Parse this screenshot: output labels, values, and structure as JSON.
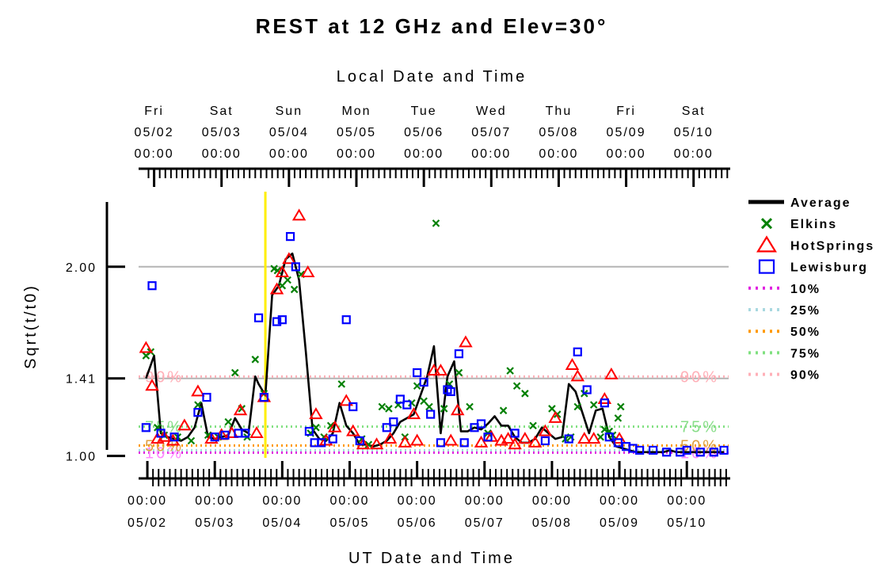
{
  "chart_data": {
    "type": "line",
    "title": "REST at 12 GHz and Elev=30°",
    "top_axis_title": "Local Date and Time",
    "xlabel": "UT Date and Time",
    "ylabel": "Sqrt(t/t0)",
    "x_unit": "UT days since 05/02 00:00",
    "xlim": [
      -0.13,
      8.62
    ],
    "ylim": [
      0.99,
      2.33
    ],
    "y_ticks": [
      {
        "value": 1.0,
        "label": "1.00"
      },
      {
        "value": 1.41,
        "label": "1.41"
      },
      {
        "value": 2.0,
        "label": "2.00"
      }
    ],
    "bottom_ticks": [
      {
        "x": 0,
        "time": "00:00",
        "date": "05/02"
      },
      {
        "x": 1,
        "time": "00:00",
        "date": "05/03"
      },
      {
        "x": 2,
        "time": "00:00",
        "date": "05/04"
      },
      {
        "x": 3,
        "time": "00:00",
        "date": "05/05"
      },
      {
        "x": 4,
        "time": "00:00",
        "date": "05/06"
      },
      {
        "x": 5,
        "time": "00:00",
        "date": "05/07"
      },
      {
        "x": 6,
        "time": "00:00",
        "date": "05/08"
      },
      {
        "x": 7,
        "time": "00:00",
        "date": "05/09"
      },
      {
        "x": 8,
        "time": "00:00",
        "date": "05/10"
      }
    ],
    "top_ticks": [
      {
        "x": 0.1,
        "day": "Fri",
        "date": "05/02",
        "time": "00:00"
      },
      {
        "x": 1.1,
        "day": "Sat",
        "date": "05/03",
        "time": "00:00"
      },
      {
        "x": 2.1,
        "day": "Sun",
        "date": "05/04",
        "time": "00:00"
      },
      {
        "x": 3.1,
        "day": "Mon",
        "date": "05/05",
        "time": "00:00"
      },
      {
        "x": 4.1,
        "day": "Tue",
        "date": "05/06",
        "time": "00:00"
      },
      {
        "x": 5.1,
        "day": "Wed",
        "date": "05/07",
        "time": "00:00"
      },
      {
        "x": 6.1,
        "day": "Thu",
        "date": "05/08",
        "time": "00:00"
      },
      {
        "x": 7.1,
        "day": "Fri",
        "date": "05/09",
        "time": "00:00"
      },
      {
        "x": 8.1,
        "day": "Sat",
        "date": "05/10",
        "time": "00:00"
      }
    ],
    "grid_lines": [
      1.41,
      2.0
    ],
    "current_time_marker": {
      "x": 1.75,
      "color": "#ffee00"
    },
    "percentiles": [
      {
        "name": "10%",
        "value": 1.017,
        "color": "#e020e0",
        "text_color": "#ff88ff",
        "labelled": true
      },
      {
        "name": "25%",
        "value": 1.03,
        "color": "#a8d8e0",
        "text_color": "#a8d8e0",
        "labelled": false
      },
      {
        "name": "50%",
        "value": 1.055,
        "color": "#ff9900",
        "text_color": "#e0a040",
        "labelled": true
      },
      {
        "name": "75%",
        "value": 1.155,
        "color": "#80e080",
        "text_color": "#88dd88",
        "labelled": true
      },
      {
        "name": "90%",
        "value": 1.42,
        "color": "#ffb0b8",
        "text_color": "#ffb0b8",
        "labelled": true
      }
    ],
    "series": [
      {
        "name": "Average",
        "kind": "line",
        "color": "#000000",
        "x": [
          -0.02,
          0.1,
          0.2,
          0.3,
          0.4,
          0.5,
          0.6,
          0.7,
          0.8,
          0.9,
          1.0,
          1.1,
          1.2,
          1.3,
          1.4,
          1.5,
          1.6,
          1.65,
          1.75,
          1.85,
          1.95,
          2.05,
          2.15,
          2.25,
          2.35,
          2.45,
          2.55,
          2.65,
          2.75,
          2.85,
          2.95,
          3.05,
          3.15,
          3.25,
          3.35,
          3.45,
          3.55,
          3.65,
          3.75,
          3.85,
          3.95,
          4.05,
          4.15,
          4.25,
          4.35,
          4.45,
          4.55,
          4.65,
          4.75,
          4.85,
          4.95,
          5.05,
          5.15,
          5.25,
          5.35,
          5.45,
          5.55,
          5.65,
          5.75,
          5.85,
          5.95,
          6.05,
          6.15,
          6.25,
          6.35,
          6.45,
          6.55,
          6.65,
          6.75,
          6.85,
          6.95,
          7.05,
          7.15,
          7.25,
          7.35,
          7.45,
          7.55,
          7.65,
          7.75,
          7.85,
          7.95,
          8.05,
          8.15,
          8.25,
          8.35,
          8.45,
          8.55
        ],
        "y": [
          1.41,
          1.53,
          1.12,
          1.1,
          1.09,
          1.08,
          1.1,
          1.15,
          1.28,
          1.1,
          1.09,
          1.1,
          1.11,
          1.2,
          1.14,
          1.12,
          1.42,
          1.38,
          1.32,
          1.85,
          1.9,
          2.04,
          2.07,
          1.93,
          1.55,
          1.14,
          1.09,
          1.08,
          1.12,
          1.28,
          1.16,
          1.12,
          1.06,
          1.06,
          1.05,
          1.06,
          1.08,
          1.12,
          1.18,
          1.2,
          1.22,
          1.32,
          1.42,
          1.58,
          1.12,
          1.42,
          1.5,
          1.13,
          1.13,
          1.15,
          1.14,
          1.17,
          1.21,
          1.16,
          1.16,
          1.1,
          1.07,
          1.07,
          1.09,
          1.15,
          1.12,
          1.09,
          1.1,
          1.38,
          1.34,
          1.23,
          1.12,
          1.24,
          1.25,
          1.1,
          1.05,
          1.04,
          1.03,
          1.02,
          1.02,
          1.02,
          1.02,
          1.02,
          1.03,
          1.02,
          1.02,
          1.02,
          1.02,
          1.02,
          1.02,
          1.02,
          1.02
        ]
      },
      {
        "name": "Elkins",
        "kind": "marker",
        "marker": "x",
        "color": "#008000",
        "x": [
          -0.02,
          0.05,
          0.15,
          0.25,
          0.45,
          0.65,
          0.75,
          0.9,
          1.05,
          1.2,
          1.3,
          1.4,
          1.48,
          1.6,
          1.73,
          1.88,
          1.93,
          2.0,
          2.08,
          2.18,
          2.28,
          2.42,
          2.5,
          2.62,
          2.72,
          2.88,
          3.18,
          3.28,
          3.48,
          3.58,
          3.72,
          3.82,
          3.92,
          4.0,
          4.1,
          4.18,
          4.28,
          4.4,
          4.48,
          4.62,
          4.78,
          5.05,
          5.28,
          5.38,
          5.48,
          5.6,
          5.72,
          6.0,
          6.08,
          6.2,
          6.28,
          6.38,
          6.48,
          6.62,
          6.72,
          6.78,
          6.85,
          6.9,
          6.98,
          7.02
        ],
        "y": [
          1.53,
          1.55,
          1.15,
          1.11,
          1.1,
          1.08,
          1.27,
          1.11,
          1.1,
          1.18,
          1.44,
          1.25,
          1.1,
          1.51,
          1.33,
          1.99,
          1.98,
          1.9,
          1.93,
          1.88,
          1.96,
          1.12,
          1.15,
          1.1,
          1.16,
          1.38,
          1.09,
          1.06,
          1.26,
          1.25,
          1.27,
          1.1,
          1.28,
          1.37,
          1.29,
          1.26,
          2.23,
          1.25,
          1.38,
          1.44,
          1.26,
          1.12,
          1.24,
          1.45,
          1.37,
          1.33,
          1.16,
          1.25,
          1.22,
          1.09,
          1.1,
          1.26,
          1.33,
          1.27,
          1.1,
          1.14,
          1.13,
          1.11,
          1.2,
          1.26
        ]
      },
      {
        "name": "HotSprings",
        "kind": "marker",
        "marker": "triangle",
        "color": "#ff0000",
        "x": [
          -0.02,
          0.07,
          0.15,
          0.25,
          0.38,
          0.55,
          0.75,
          0.95,
          1.1,
          1.25,
          1.38,
          1.62,
          1.73,
          1.92,
          2.0,
          2.1,
          2.25,
          2.38,
          2.5,
          2.65,
          2.78,
          2.95,
          3.05,
          3.2,
          3.4,
          3.6,
          3.82,
          3.95,
          4.0,
          4.25,
          4.35,
          4.5,
          4.6,
          4.72,
          4.95,
          5.1,
          5.25,
          5.35,
          5.45,
          5.6,
          5.75,
          5.9,
          6.05,
          6.3,
          6.38,
          6.48,
          6.62,
          6.78,
          6.88,
          7.0
        ],
        "y": [
          1.57,
          1.37,
          1.09,
          1.1,
          1.08,
          1.16,
          1.34,
          1.09,
          1.11,
          1.12,
          1.24,
          1.12,
          1.31,
          1.88,
          1.97,
          2.04,
          2.27,
          1.97,
          1.22,
          1.08,
          1.15,
          1.29,
          1.13,
          1.06,
          1.06,
          1.09,
          1.07,
          1.22,
          1.08,
          1.45,
          1.45,
          1.08,
          1.24,
          1.6,
          1.07,
          1.1,
          1.08,
          1.09,
          1.06,
          1.09,
          1.07,
          1.13,
          1.2,
          1.48,
          1.42,
          1.09,
          1.09,
          1.3,
          1.43,
          1.09
        ]
      },
      {
        "name": "Lewisburg",
        "kind": "marker",
        "marker": "square",
        "color": "#0000ff",
        "x": [
          -0.02,
          0.07,
          0.2,
          0.4,
          0.75,
          0.88,
          1.0,
          1.15,
          1.35,
          1.45,
          1.65,
          1.73,
          1.92,
          2.0,
          2.12,
          2.2,
          2.4,
          2.48,
          2.58,
          2.75,
          2.95,
          3.05,
          3.15,
          3.55,
          3.65,
          3.75,
          3.85,
          4.0,
          4.1,
          4.2,
          4.35,
          4.45,
          4.5,
          4.62,
          4.7,
          4.85,
          4.95,
          5.05,
          5.45,
          5.9,
          6.25,
          6.38,
          6.52,
          6.78,
          6.85,
          6.98,
          7.1,
          7.2,
          7.3,
          7.5,
          7.7,
          7.9,
          8.0,
          8.2,
          8.4,
          8.55
        ],
        "y": [
          1.15,
          1.9,
          1.12,
          1.1,
          1.23,
          1.31,
          1.1,
          1.11,
          1.12,
          1.12,
          1.73,
          1.31,
          1.71,
          1.72,
          2.16,
          2.0,
          1.13,
          1.07,
          1.07,
          1.09,
          1.72,
          1.26,
          1.08,
          1.15,
          1.18,
          1.3,
          1.27,
          1.44,
          1.39,
          1.22,
          1.07,
          1.35,
          1.34,
          1.54,
          1.07,
          1.15,
          1.17,
          1.1,
          1.12,
          1.08,
          1.09,
          1.55,
          1.35,
          1.28,
          1.1,
          1.07,
          1.05,
          1.04,
          1.03,
          1.03,
          1.02,
          1.02,
          1.03,
          1.02,
          1.02,
          1.03
        ]
      }
    ],
    "legend": {
      "placement": "right",
      "entries": [
        "Average",
        "Elkins",
        "HotSprings",
        "Lewisburg",
        "10%",
        "25%",
        "50%",
        "75%",
        "90%"
      ]
    }
  }
}
